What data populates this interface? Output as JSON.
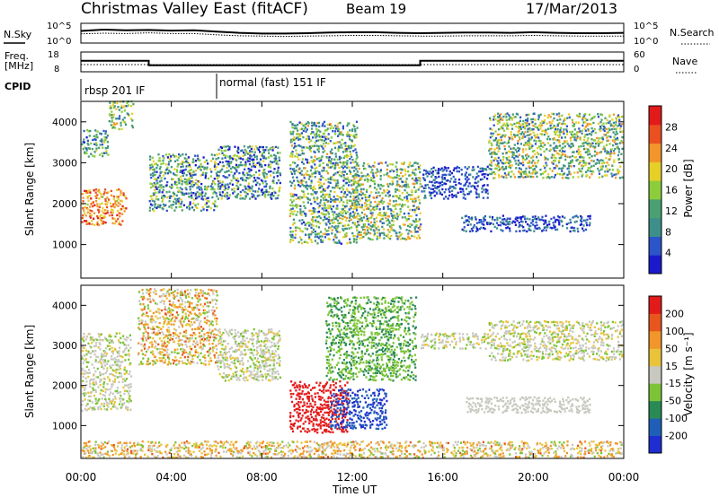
{
  "header": {
    "title": "Christmas Valley East (fitACF)",
    "beam": "Beam 19",
    "date": "17/Mar/2013"
  },
  "noise_panel": {
    "left_label": "N.Sky",
    "left_ticks": [
      "10^5",
      "10^0"
    ],
    "right_ticks": [
      "10^5",
      "10^0"
    ],
    "right_label": "N.Search"
  },
  "freq_panel": {
    "left_label_line1": "Freq.",
    "left_label_line2": "[MHz]",
    "left_ticks": [
      "18",
      "8"
    ],
    "right_ticks": [
      "60",
      "0"
    ],
    "right_label": "Nave"
  },
  "cpid": {
    "label": "CPID",
    "segments": [
      {
        "start_hour": 0,
        "label": "rbsp 201 IF"
      },
      {
        "start_hour": 6,
        "label": "normal (fast) 151 IF"
      }
    ]
  },
  "x_axis": {
    "label": "Time UT",
    "ticks": [
      "00:00",
      "04:00",
      "08:00",
      "12:00",
      "16:00",
      "20:00",
      "00:00"
    ],
    "range_hours": [
      0,
      24
    ]
  },
  "power_panel": {
    "ylabel": "Slant Range [km]",
    "yticks": [
      "4000",
      "3000",
      "2000",
      "1000"
    ],
    "colorbar_label": "Power [dB]",
    "colorbar_ticks": [
      "28",
      "24",
      "20",
      "16",
      "12",
      "8",
      "4"
    ]
  },
  "velocity_panel": {
    "ylabel": "Slant Range [km]",
    "yticks": [
      "4000",
      "3000",
      "2000",
      "1000"
    ],
    "colorbar_label": "Velocity [m s⁻¹]",
    "colorbar_ticks": [
      "200",
      "100",
      "50",
      "15",
      "-15",
      "-50",
      "-100",
      "-200"
    ]
  },
  "colors": {
    "power_scale": [
      "#1a1acc",
      "#2b55c8",
      "#3d8f8a",
      "#4aa070",
      "#8ccd3c",
      "#e6d028",
      "#f0962a",
      "#ea5020",
      "#e31a1a"
    ],
    "velocity_scale": [
      "#1e2ed0",
      "#1f5fb8",
      "#2a8a55",
      "#7cc436",
      "#c8c8c0",
      "#e9c43a",
      "#f0962a",
      "#e8561e",
      "#e31a1a"
    ]
  },
  "chart_data": [
    {
      "type": "line",
      "name": "noise",
      "x_range_hours": [
        0,
        24
      ],
      "series": [
        {
          "values": [
            3.2,
            3.6,
            3.4,
            3.5,
            3.3,
            3.4,
            3.0,
            2.6,
            2.4,
            2.4,
            2.5,
            2.7,
            2.8,
            2.8,
            2.6,
            2.5,
            2.6,
            2.7,
            2.7,
            2.6,
            2.8,
            2.6,
            2.5,
            2.5,
            2.6
          ]
        },
        {
          "values": [
            2.3,
            2.5,
            2.4,
            2.6,
            2.4,
            2.4,
            2.0,
            1.7,
            1.6,
            1.5,
            1.6,
            1.7,
            1.8,
            1.8,
            1.7,
            1.6,
            1.6,
            1.7,
            1.7,
            1.7,
            1.8,
            1.7,
            1.6,
            1.6,
            1.6
          ]
        }
      ]
    },
    {
      "type": "line",
      "name": "frequency",
      "steps": [
        {
          "from_hour": 0,
          "to_hour": 3,
          "freq_mhz": 13.7
        },
        {
          "from_hour": 3,
          "to_hour": 15,
          "freq_mhz": 10.9
        },
        {
          "from_hour": 15,
          "to_hour": 24,
          "freq_mhz": 13.7
        }
      ],
      "nave": [
        {
          "from_hour": 0,
          "to_hour": 24,
          "value": 20
        }
      ]
    },
    {
      "type": "heatmap",
      "name": "power",
      "x_range_hours": [
        0,
        24
      ],
      "y_range_km": [
        180,
        4500
      ],
      "features": [
        {
          "t0": 0.0,
          "t1": 2.0,
          "r0": 1450,
          "r1": 2350,
          "level": 0.75,
          "spread": 0.2
        },
        {
          "t0": 0.0,
          "t1": 1.2,
          "r0": 3100,
          "r1": 3800,
          "level": 0.35,
          "spread": 0.25
        },
        {
          "t0": 1.2,
          "t1": 2.3,
          "r0": 3800,
          "r1": 4500,
          "level": 0.45,
          "spread": 0.25
        },
        {
          "t0": 3.0,
          "t1": 6.0,
          "r0": 1800,
          "r1": 3200,
          "level": 0.35,
          "spread": 0.3
        },
        {
          "t0": 6.0,
          "t1": 8.8,
          "r0": 2100,
          "r1": 3400,
          "level": 0.3,
          "spread": 0.3
        },
        {
          "t0": 9.2,
          "t1": 12.2,
          "r0": 1000,
          "r1": 4000,
          "level": 0.4,
          "spread": 0.3
        },
        {
          "t0": 12.0,
          "t1": 15.0,
          "r0": 1100,
          "r1": 3000,
          "level": 0.45,
          "spread": 0.3
        },
        {
          "t0": 15.0,
          "t1": 18.0,
          "r0": 2100,
          "r1": 2900,
          "level": 0.15,
          "spread": 0.15
        },
        {
          "t0": 16.8,
          "t1": 22.5,
          "r0": 1300,
          "r1": 1700,
          "level": 0.15,
          "spread": 0.15
        },
        {
          "t0": 18.0,
          "t1": 24.0,
          "r0": 2600,
          "r1": 4200,
          "level": 0.45,
          "spread": 0.3
        }
      ]
    },
    {
      "type": "heatmap",
      "name": "velocity",
      "x_range_hours": [
        0,
        24
      ],
      "y_range_km": [
        180,
        4500
      ],
      "features": [
        {
          "t0": 0.0,
          "t1": 2.2,
          "r0": 1350,
          "r1": 3300,
          "level": 0.5,
          "spread": 0.1
        },
        {
          "t0": 2.5,
          "t1": 6.0,
          "r0": 2500,
          "r1": 4400,
          "level": 0.6,
          "spread": 0.25
        },
        {
          "t0": 6.0,
          "t1": 8.8,
          "r0": 2100,
          "r1": 3400,
          "level": 0.5,
          "spread": 0.1
        },
        {
          "t0": 9.2,
          "t1": 11.8,
          "r0": 800,
          "r1": 2100,
          "level": 0.95,
          "spread": 0.05
        },
        {
          "t0": 11.0,
          "t1": 13.5,
          "r0": 900,
          "r1": 1900,
          "level": 0.1,
          "spread": 0.1
        },
        {
          "t0": 10.8,
          "t1": 14.8,
          "r0": 2100,
          "r1": 4200,
          "level": 0.35,
          "spread": 0.08
        },
        {
          "t0": 15.0,
          "t1": 18.0,
          "r0": 2900,
          "r1": 3300,
          "level": 0.5,
          "spread": 0.1
        },
        {
          "t0": 17.0,
          "t1": 22.5,
          "r0": 1300,
          "r1": 1700,
          "level": 0.5,
          "spread": 0.05
        },
        {
          "t0": 18.0,
          "t1": 24.0,
          "r0": 2600,
          "r1": 3600,
          "level": 0.5,
          "spread": 0.12
        },
        {
          "t0": 0.0,
          "t1": 24.0,
          "r0": 180,
          "r1": 600,
          "level": 0.6,
          "spread": 0.2
        }
      ]
    }
  ]
}
